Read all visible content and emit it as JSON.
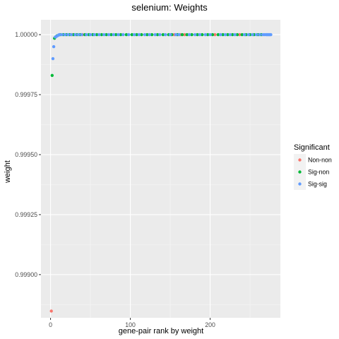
{
  "chart_data": {
    "type": "scatter",
    "title": "selenium: Weights",
    "xlabel": "gene-pair rank by weight",
    "ylabel": "weight",
    "xlim": [
      -12,
      288
    ],
    "ylim": [
      0.99882,
      1.000062
    ],
    "x_ticks": [
      0,
      100,
      200
    ],
    "x_tick_labels": [
      "0",
      "100",
      "200"
    ],
    "y_ticks": [
      0.999,
      0.99925,
      0.9995,
      0.99975,
      1.0
    ],
    "y_tick_labels": [
      "0.99900",
      "0.99925",
      "0.99950",
      "0.99975",
      "1.00000"
    ],
    "grid": true,
    "legend": {
      "title": "Significant",
      "position": "right",
      "entries": [
        {
          "label": "Non-non",
          "color": "#F8766D"
        },
        {
          "label": "Sig-non",
          "color": "#00BA38"
        },
        {
          "label": "Sig-sig",
          "color": "#619CFF"
        }
      ]
    },
    "series": [
      {
        "name": "Non-non",
        "color": "#F8766D",
        "points": [
          [
            1,
            0.998848
          ],
          [
            27,
            1.0
          ],
          [
            40,
            1.0
          ],
          [
            155,
            1.0
          ],
          [
            163,
            1.0
          ],
          [
            168,
            1.0
          ],
          [
            206,
            1.0
          ],
          [
            237,
            1.0
          ]
        ]
      },
      {
        "name": "Sig-non",
        "color": "#00BA38",
        "points": [
          [
            2,
            0.99983
          ],
          [
            5,
            0.999985
          ],
          [
            8,
            0.999995
          ],
          [
            12,
            1.0
          ],
          [
            16,
            1.0
          ],
          [
            20,
            1.0
          ],
          [
            24,
            1.0
          ],
          [
            29,
            1.0
          ],
          [
            33,
            1.0
          ],
          [
            37,
            1.0
          ],
          [
            43,
            1.0
          ],
          [
            48,
            1.0
          ],
          [
            53,
            1.0
          ],
          [
            58,
            1.0
          ],
          [
            64,
            1.0
          ],
          [
            70,
            1.0
          ],
          [
            76,
            1.0
          ],
          [
            82,
            1.0
          ],
          [
            88,
            1.0
          ],
          [
            95,
            1.0
          ],
          [
            102,
            1.0
          ],
          [
            108,
            1.0
          ],
          [
            114,
            1.0
          ],
          [
            121,
            1.0
          ],
          [
            127,
            1.0
          ],
          [
            134,
            1.0
          ],
          [
            141,
            1.0
          ],
          [
            148,
            1.0
          ],
          [
            152,
            1.0
          ],
          [
            159,
            1.0
          ],
          [
            165,
            1.0
          ],
          [
            171,
            1.0
          ],
          [
            177,
            1.0
          ],
          [
            184,
            1.0
          ],
          [
            190,
            1.0
          ],
          [
            197,
            1.0
          ],
          [
            203,
            1.0
          ],
          [
            210,
            1.0
          ],
          [
            216,
            1.0
          ],
          [
            222,
            1.0
          ],
          [
            228,
            1.0
          ],
          [
            234,
            1.0
          ],
          [
            240,
            1.0
          ],
          [
            245,
            1.0
          ],
          [
            250,
            1.0
          ],
          [
            255,
            1.0
          ],
          [
            260,
            1.0
          ],
          [
            264,
            1.0
          ]
        ]
      },
      {
        "name": "Sig-sig",
        "color": "#619CFF",
        "points": [
          [
            3,
            0.9999
          ],
          [
            4,
            0.99995
          ],
          [
            6,
            0.99999
          ],
          [
            7,
            0.999992
          ],
          [
            9,
            0.999996
          ],
          [
            10,
            0.999998
          ],
          [
            11,
            1.0
          ],
          [
            14,
            1.0
          ],
          [
            18,
            1.0
          ],
          [
            22,
            1.0
          ],
          [
            26,
            1.0
          ],
          [
            31,
            1.0
          ],
          [
            35,
            1.0
          ],
          [
            39,
            1.0
          ],
          [
            45,
            1.0
          ],
          [
            50,
            1.0
          ],
          [
            55,
            1.0
          ],
          [
            61,
            1.0
          ],
          [
            67,
            1.0
          ],
          [
            73,
            1.0
          ],
          [
            79,
            1.0
          ],
          [
            85,
            1.0
          ],
          [
            91,
            1.0
          ],
          [
            98,
            1.0
          ],
          [
            105,
            1.0
          ],
          [
            111,
            1.0
          ],
          [
            118,
            1.0
          ],
          [
            124,
            1.0
          ],
          [
            131,
            1.0
          ],
          [
            137,
            1.0
          ],
          [
            144,
            1.0
          ],
          [
            150,
            1.0
          ],
          [
            157,
            1.0
          ],
          [
            161,
            1.0
          ],
          [
            174,
            1.0
          ],
          [
            181,
            1.0
          ],
          [
            187,
            1.0
          ],
          [
            194,
            1.0
          ],
          [
            200,
            1.0
          ],
          [
            213,
            1.0
          ],
          [
            219,
            1.0
          ],
          [
            225,
            1.0
          ],
          [
            231,
            1.0
          ],
          [
            243,
            1.0
          ],
          [
            248,
            1.0
          ],
          [
            253,
            1.0
          ],
          [
            258,
            1.0
          ],
          [
            262,
            1.0
          ],
          [
            266,
            1.0
          ],
          [
            268,
            1.0
          ],
          [
            270,
            1.0
          ],
          [
            271,
            1.0
          ],
          [
            272,
            1.0
          ],
          [
            273,
            1.0
          ],
          [
            274,
            1.0
          ],
          [
            275,
            1.0
          ],
          [
            276,
            1.0
          ]
        ]
      }
    ]
  }
}
